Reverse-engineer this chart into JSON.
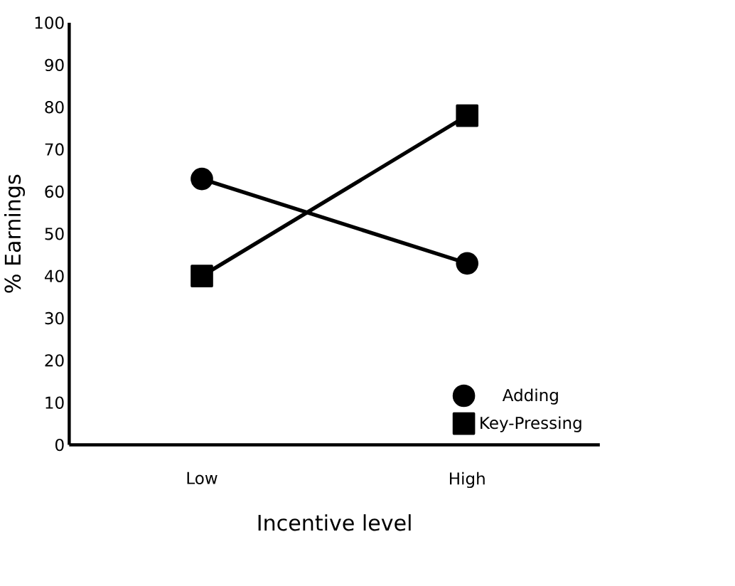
{
  "chart_data": {
    "type": "line",
    "xlabel": "Incentive level",
    "ylabel": "% Earnings",
    "categories": [
      "Low",
      "High"
    ],
    "series": [
      {
        "name": "Adding",
        "color": "#000000",
        "marker": "circle",
        "values": [
          63,
          43
        ]
      },
      {
        "name": "Key-Pressing",
        "color": "#000000",
        "marker": "square",
        "values": [
          40,
          78
        ]
      }
    ],
    "ylim": [
      0,
      100
    ],
    "yticks": [
      0,
      10,
      20,
      30,
      40,
      50,
      60,
      70,
      80,
      90,
      100
    ],
    "legend": "bottom right",
    "grid": false,
    "line_style": "solid"
  }
}
